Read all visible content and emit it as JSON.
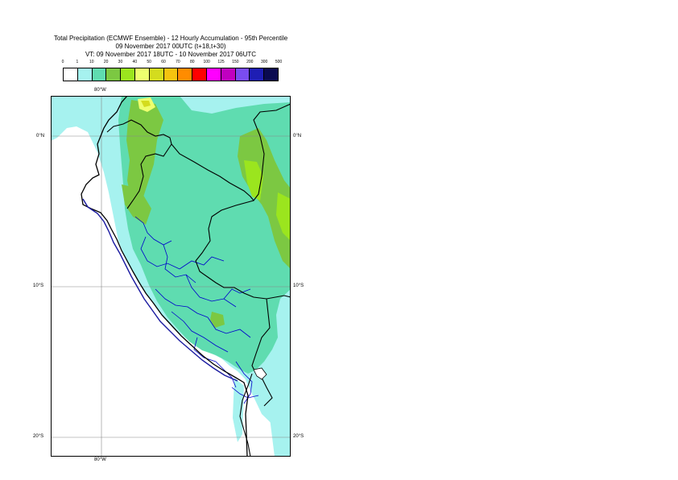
{
  "header": {
    "title_line1": "Total Precipitation (ECMWF Ensemble) - 12 Hourly Accumulation - 95th Percentile",
    "title_line2": "09 November 2017 00UTC (t+18,t+30)",
    "title_line3": "VT: 09 November 2017 18UTC - 10 November 2017 06UTC"
  },
  "legend": {
    "thresholds": [
      "0",
      "1",
      "10",
      "20",
      "30",
      "40",
      "50",
      "60",
      "70",
      "80",
      "100",
      "125",
      "150",
      "200",
      "300",
      "500"
    ],
    "colors": [
      "#ffffff",
      "#a6f2ef",
      "#5fdcb0",
      "#7cc842",
      "#9be51e",
      "#eeff6e",
      "#d4dc1e",
      "#f5c30f",
      "#ff8c00",
      "#ff0000",
      "#ff00ff",
      "#c000c0",
      "#7a4cf0",
      "#1e1eb4",
      "#0a0a50"
    ]
  },
  "map": {
    "lon_label_top": "80°W",
    "lon_label_bottom": "80°W",
    "lat_labels": [
      {
        "text": "0°N",
        "lat": 0
      },
      {
        "text": "10°S",
        "lat": -10
      },
      {
        "text": "20°S",
        "lat": -20
      }
    ],
    "lon_labels_value": -80,
    "country_border_color": "#000000",
    "region_border_color": "#0000cc",
    "coast_color": "#000000"
  }
}
